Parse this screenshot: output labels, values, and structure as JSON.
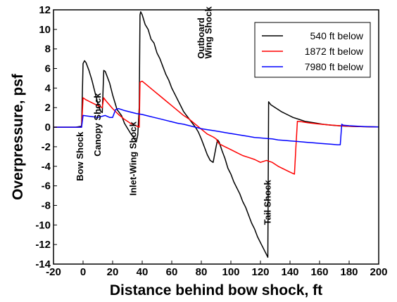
{
  "chart_data": {
    "type": "line",
    "title": "",
    "xlabel": "Distance behind bow shock, ft",
    "ylabel": "Overpressure, psf",
    "xlim": [
      -20,
      200
    ],
    "ylim": [
      -14,
      12
    ],
    "x_ticks": [
      -20,
      0,
      20,
      40,
      60,
      80,
      100,
      120,
      140,
      160,
      180,
      200
    ],
    "y_ticks": [
      12,
      10,
      8,
      6,
      4,
      2,
      0,
      -2,
      -4,
      -6,
      -8,
      -10,
      -12,
      -14
    ],
    "grid": false,
    "legend_position": "top-right",
    "series": [
      {
        "name": "540 ft below",
        "color": "#000000",
        "points": [
          [
            -20,
            0
          ],
          [
            -5,
            0
          ],
          [
            -1,
            0.1
          ],
          [
            0,
            6.5
          ],
          [
            1,
            6.8
          ],
          [
            2,
            6.6
          ],
          [
            4,
            5.8
          ],
          [
            6,
            4.8
          ],
          [
            8,
            3.6
          ],
          [
            10,
            2.4
          ],
          [
            12,
            1.6
          ],
          [
            13,
            1.5
          ],
          [
            14,
            5.8
          ],
          [
            15,
            5.7
          ],
          [
            18,
            4.5
          ],
          [
            20,
            3.3
          ],
          [
            22,
            2.3
          ],
          [
            23,
            1.8
          ],
          [
            26,
            1.2
          ],
          [
            28,
            0.4
          ],
          [
            30,
            -0.1
          ],
          [
            32,
            -0.6
          ],
          [
            34,
            -1
          ],
          [
            36,
            -1.5
          ],
          [
            37,
            -0.8
          ],
          [
            38,
            2
          ],
          [
            38.5,
            11.5
          ],
          [
            39,
            11.8
          ],
          [
            40,
            11.5
          ],
          [
            42,
            10.5
          ],
          [
            44,
            10
          ],
          [
            46,
            9
          ],
          [
            48,
            8.6
          ],
          [
            50,
            7.6
          ],
          [
            52,
            7
          ],
          [
            54,
            6.2
          ],
          [
            56,
            5.4
          ],
          [
            58,
            4.8
          ],
          [
            60,
            4
          ],
          [
            62,
            3.4
          ],
          [
            64,
            2.8
          ],
          [
            66,
            2.2
          ],
          [
            68,
            1.6
          ],
          [
            70,
            1.2
          ],
          [
            72,
            0.8
          ],
          [
            74,
            0.4
          ],
          [
            76,
            0
          ],
          [
            78,
            -0.5
          ],
          [
            80,
            -1.2
          ],
          [
            82,
            -2
          ],
          [
            84,
            -2.8
          ],
          [
            86,
            -3.4
          ],
          [
            88,
            -3.6
          ],
          [
            90,
            -2
          ],
          [
            91,
            -1.3
          ],
          [
            92,
            -1.5
          ],
          [
            94,
            -2.4
          ],
          [
            96,
            -3.2
          ],
          [
            98,
            -4.2
          ],
          [
            100,
            -4.8
          ],
          [
            102,
            -5.6
          ],
          [
            104,
            -6.2
          ],
          [
            106,
            -6.8
          ],
          [
            108,
            -7.6
          ],
          [
            110,
            -8.2
          ],
          [
            112,
            -9
          ],
          [
            114,
            -9.8
          ],
          [
            116,
            -10.4
          ],
          [
            118,
            -11.2
          ],
          [
            120,
            -11.8
          ],
          [
            122,
            -12.4
          ],
          [
            124,
            -13
          ],
          [
            125,
            -13.3
          ],
          [
            125.5,
            2.6
          ],
          [
            127,
            2.3
          ],
          [
            130,
            2
          ],
          [
            134,
            1.6
          ],
          [
            138,
            1.3
          ],
          [
            142,
            1
          ],
          [
            146,
            0.8
          ],
          [
            150,
            0.6
          ],
          [
            156,
            0.45
          ],
          [
            162,
            0.3
          ],
          [
            168,
            0.2
          ],
          [
            175,
            0.12
          ],
          [
            182,
            0.08
          ],
          [
            190,
            0.05
          ],
          [
            200,
            0.03
          ]
        ]
      },
      {
        "name": "1872 ft below",
        "color": "#ff0000",
        "points": [
          [
            -20,
            0
          ],
          [
            -1,
            0
          ],
          [
            0,
            3
          ],
          [
            2,
            2.8
          ],
          [
            6,
            2.5
          ],
          [
            10,
            2.2
          ],
          [
            13,
            2
          ],
          [
            14,
            3
          ],
          [
            16,
            2.6
          ],
          [
            20,
            1.9
          ],
          [
            24,
            1.3
          ],
          [
            28,
            0.8
          ],
          [
            32,
            0.4
          ],
          [
            35,
            0.2
          ],
          [
            38,
            0
          ],
          [
            38.5,
            4.6
          ],
          [
            40,
            4.7
          ],
          [
            44,
            4.2
          ],
          [
            48,
            3.7
          ],
          [
            52,
            3.2
          ],
          [
            56,
            2.7
          ],
          [
            60,
            2.2
          ],
          [
            64,
            1.7
          ],
          [
            68,
            1.2
          ],
          [
            72,
            0.8
          ],
          [
            76,
            0.3
          ],
          [
            80,
            -0.2
          ],
          [
            84,
            -0.7
          ],
          [
            88,
            -1
          ],
          [
            90,
            -1.2
          ],
          [
            92,
            -1.7
          ],
          [
            96,
            -2
          ],
          [
            100,
            -2.3
          ],
          [
            104,
            -2.6
          ],
          [
            108,
            -2.9
          ],
          [
            112,
            -3.1
          ],
          [
            116,
            -3.3
          ],
          [
            120,
            -3.6
          ],
          [
            124,
            -3.4
          ],
          [
            128,
            -3.6
          ],
          [
            132,
            -4
          ],
          [
            136,
            -4.3
          ],
          [
            140,
            -4.6
          ],
          [
            143,
            -4.8
          ],
          [
            144,
            -2
          ],
          [
            145,
            0.6
          ],
          [
            148,
            0.55
          ],
          [
            152,
            0.45
          ],
          [
            158,
            0.35
          ],
          [
            165,
            0.25
          ],
          [
            172,
            0.17
          ],
          [
            180,
            0.1
          ],
          [
            190,
            0.05
          ],
          [
            200,
            0.03
          ]
        ]
      },
      {
        "name": "7980 ft below",
        "color": "#0000ff",
        "points": [
          [
            -20,
            0
          ],
          [
            -1,
            0
          ],
          [
            0,
            1.2
          ],
          [
            5,
            1.1
          ],
          [
            10,
            1
          ],
          [
            15,
            1.2
          ],
          [
            18,
            1
          ],
          [
            20,
            1
          ],
          [
            22,
            1.8
          ],
          [
            24,
            1.9
          ],
          [
            28,
            1.7
          ],
          [
            32,
            1.55
          ],
          [
            36,
            1.4
          ],
          [
            40,
            1.3
          ],
          [
            44,
            1.15
          ],
          [
            48,
            1
          ],
          [
            52,
            0.85
          ],
          [
            56,
            0.7
          ],
          [
            60,
            0.55
          ],
          [
            64,
            0.4
          ],
          [
            68,
            0.3
          ],
          [
            72,
            0.15
          ],
          [
            76,
            0
          ],
          [
            80,
            -0.15
          ],
          [
            84,
            -0.25
          ],
          [
            88,
            -0.35
          ],
          [
            92,
            -0.45
          ],
          [
            96,
            -0.55
          ],
          [
            100,
            -0.65
          ],
          [
            104,
            -0.75
          ],
          [
            108,
            -0.85
          ],
          [
            112,
            -0.95
          ],
          [
            116,
            -1.05
          ],
          [
            120,
            -1.1
          ],
          [
            124,
            -1.15
          ],
          [
            128,
            -1.2
          ],
          [
            132,
            -1.3
          ],
          [
            136,
            -1.35
          ],
          [
            140,
            -1.4
          ],
          [
            144,
            -1.45
          ],
          [
            148,
            -1.5
          ],
          [
            152,
            -1.55
          ],
          [
            156,
            -1.6
          ],
          [
            160,
            -1.65
          ],
          [
            164,
            -1.7
          ],
          [
            168,
            -1.75
          ],
          [
            172,
            -1.8
          ],
          [
            174,
            -1.8
          ],
          [
            175,
            0.3
          ],
          [
            176,
            0.2
          ],
          [
            180,
            0.15
          ],
          [
            186,
            0.1
          ],
          [
            192,
            0.05
          ],
          [
            200,
            0.02
          ]
        ]
      }
    ],
    "annotations": [
      {
        "text": "Bow Shock",
        "x": 0,
        "y": -5.5
      },
      {
        "text": "Canopy Shock",
        "x": 12,
        "y": -3
      },
      {
        "text": "Inlet-Wing Shock",
        "x": 36,
        "y": -7
      },
      {
        "text": "Outboard",
        "x": 82,
        "y": 7
      },
      {
        "text": "Wing Shock",
        "x": 87,
        "y": 7
      },
      {
        "text": "Tail Shock",
        "x": 127,
        "y": -10
      }
    ]
  }
}
